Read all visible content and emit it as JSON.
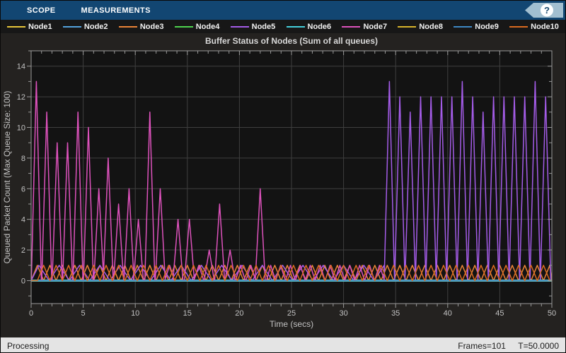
{
  "toolstrip": {
    "tabs": [
      {
        "label": "SCOPE"
      },
      {
        "label": "MEASUREMENTS"
      }
    ],
    "help_icon": "?"
  },
  "status_bar": {
    "left": "Processing",
    "frames": "Frames=101",
    "time": "T=50.0000"
  },
  "chart_data": {
    "type": "line",
    "title": "Buffer Status of Nodes (Sum of all queues)",
    "xlabel": "Time (secs)",
    "ylabel": "Queued Packet Count (Max Queue Size: 100)",
    "xlim": [
      0,
      50
    ],
    "ylim": [
      -1.5,
      15
    ],
    "x_ticks": [
      0,
      5,
      10,
      15,
      20,
      25,
      30,
      35,
      40,
      45,
      50
    ],
    "y_ticks": [
      0,
      2,
      4,
      6,
      8,
      10,
      12,
      14
    ],
    "x_minor_step": 1,
    "y_minor_step": 1,
    "grid": true,
    "legend_position": "top",
    "axes_background": "#131313",
    "grid_color": "#3f3f3f",
    "axis_color": "#9a9a9a",
    "text_color": "#c2c2c2",
    "series": [
      {
        "name": "Node1",
        "color": "#e7c53a",
        "width": 1.4,
        "segments": [
          {
            "type": "flat",
            "v": 0,
            "t0": 0,
            "t1": 50
          }
        ]
      },
      {
        "name": "Node2",
        "color": "#53a2dc",
        "width": 1.4,
        "segments": [
          {
            "type": "flat",
            "v": 0,
            "t0": 0,
            "t1": 50
          }
        ]
      },
      {
        "name": "Node3",
        "color": "#ea8438",
        "width": 1.5,
        "segments": [
          {
            "type": "wave",
            "peak": 1,
            "period": 1.2,
            "phase": 0.6,
            "t0": 0,
            "t1": 50
          }
        ]
      },
      {
        "name": "Node4",
        "color": "#4ed44e",
        "width": 1.4,
        "segments": [
          {
            "type": "flat",
            "v": 0,
            "t0": 0,
            "t1": 50
          }
        ]
      },
      {
        "name": "Node5",
        "color": "#a45ce8",
        "width": 1.5,
        "segments": [
          {
            "type": "wave",
            "peak": 1,
            "period": 1.95,
            "phase": 0.75,
            "t0": 0,
            "t1": 33.9
          },
          {
            "type": "spikes",
            "hw": 0.5,
            "peaks": [
              [
                34.4,
                13
              ],
              [
                35.4,
                12
              ],
              [
                36.4,
                11
              ],
              [
                37.4,
                12
              ],
              [
                38.4,
                12
              ],
              [
                39.4,
                12
              ],
              [
                40.4,
                12
              ],
              [
                41.4,
                13
              ],
              [
                42.4,
                12
              ],
              [
                43.4,
                11
              ],
              [
                44.4,
                12
              ],
              [
                45.4,
                12
              ],
              [
                46.4,
                12
              ],
              [
                47.4,
                12
              ],
              [
                48.4,
                13
              ],
              [
                49.4,
                12
              ]
            ]
          },
          {
            "type": "flat",
            "v": 0,
            "t0": 49.9,
            "t1": 50
          }
        ]
      },
      {
        "name": "Node6",
        "color": "#45d0dc",
        "width": 3,
        "segments": [
          {
            "type": "flat",
            "v": 0,
            "t0": 0,
            "t1": 50
          }
        ]
      },
      {
        "name": "Node7",
        "color": "#dd52bc",
        "width": 1.5,
        "segments": [
          {
            "type": "spikes",
            "hw": 0.48,
            "peaks": [
              [
                0.5,
                13
              ],
              [
                1.5,
                11
              ],
              [
                2.5,
                9
              ],
              [
                3.5,
                9
              ],
              [
                4.5,
                11
              ],
              [
                5.5,
                10
              ],
              [
                6.5,
                6
              ],
              [
                7.4,
                8
              ],
              [
                8.4,
                5
              ],
              [
                9.4,
                6
              ],
              [
                10.3,
                4
              ],
              [
                11.4,
                11
              ],
              [
                12.4,
                6
              ],
              [
                13.3,
                1
              ],
              [
                14.1,
                4
              ],
              [
                15.2,
                4
              ],
              [
                16.1,
                1
              ],
              [
                17.1,
                2
              ],
              [
                18.1,
                5
              ],
              [
                19.1,
                2
              ],
              [
                20.1,
                1
              ],
              [
                21.1,
                1
              ],
              [
                22,
                6
              ]
            ]
          },
          {
            "type": "wave",
            "peak": 1,
            "period": 0.95,
            "phase": 23,
            "t0": 22.6,
            "t1": 34.3
          },
          {
            "type": "flat",
            "v": 0,
            "t0": 34.3,
            "t1": 50
          }
        ]
      },
      {
        "name": "Node8",
        "color": "#d8b42c",
        "width": 1.4,
        "segments": [
          {
            "type": "flat",
            "v": 0,
            "t0": 0,
            "t1": 50
          }
        ]
      },
      {
        "name": "Node9",
        "color": "#3e88c4",
        "width": 1.4,
        "segments": [
          {
            "type": "flat",
            "v": 0,
            "t0": 0,
            "t1": 50
          }
        ]
      },
      {
        "name": "Node10",
        "color": "#da6a20",
        "width": 1.5,
        "segments": [
          {
            "type": "wave",
            "peak": 1,
            "period": 1.2,
            "phase": 1.2,
            "t0": 0,
            "t1": 50
          }
        ]
      }
    ]
  }
}
